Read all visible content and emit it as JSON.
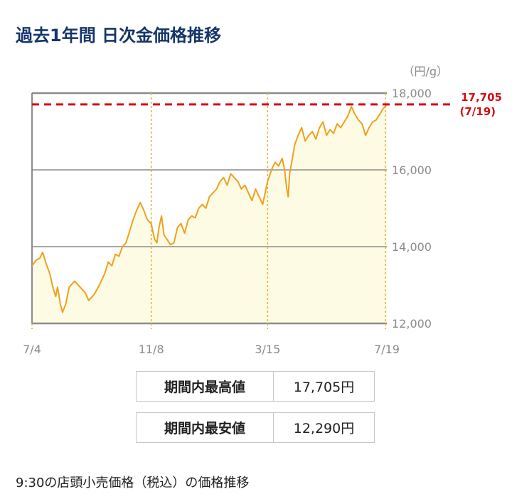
{
  "page": {
    "title": "過去1年間 日次金価格推移",
    "note": "9:30の店頭小売価格（税込）の価格推移"
  },
  "stats": {
    "high_label": "期間内最高値",
    "high_value": "17,705円",
    "low_label": "期間内最安値",
    "low_value": "12,290円"
  },
  "colors": {
    "title": "#15356b",
    "line": "#f0a01e",
    "fill": "#fdfbe3",
    "high_marker": "#d40d12",
    "gridline": "#8c8c8c",
    "date_gridline": "#ddb23a"
  },
  "chart_data": {
    "type": "area",
    "unit_label": "（円/g）",
    "ylim": [
      12000,
      18000
    ],
    "y_ticks": [
      "18,000",
      "16,000",
      "14,000",
      "12,000"
    ],
    "y_tick_values": [
      18000,
      16000,
      14000,
      12000
    ],
    "x_ticks": [
      "7/4",
      "11/8",
      "3/15",
      "7/19"
    ],
    "x_tick_positions": [
      0,
      0.336,
      0.664,
      1
    ],
    "grid": true,
    "high_marker": {
      "value": 17705,
      "label": "17,705",
      "date_label": "(7/19)"
    },
    "series": [
      {
        "points": [
          [
            0.0,
            13500
          ],
          [
            0.012,
            13650
          ],
          [
            0.022,
            13700
          ],
          [
            0.03,
            13850
          ],
          [
            0.04,
            13550
          ],
          [
            0.05,
            13300
          ],
          [
            0.06,
            12900
          ],
          [
            0.067,
            12700
          ],
          [
            0.072,
            12950
          ],
          [
            0.08,
            12500
          ],
          [
            0.086,
            12290
          ],
          [
            0.095,
            12500
          ],
          [
            0.105,
            12950
          ],
          [
            0.12,
            13100
          ],
          [
            0.135,
            12950
          ],
          [
            0.15,
            12800
          ],
          [
            0.16,
            12600
          ],
          [
            0.175,
            12750
          ],
          [
            0.19,
            13000
          ],
          [
            0.205,
            13300
          ],
          [
            0.215,
            13600
          ],
          [
            0.225,
            13500
          ],
          [
            0.235,
            13800
          ],
          [
            0.245,
            13750
          ],
          [
            0.255,
            14000
          ],
          [
            0.265,
            14100
          ],
          [
            0.275,
            14400
          ],
          [
            0.285,
            14700
          ],
          [
            0.295,
            14950
          ],
          [
            0.305,
            15150
          ],
          [
            0.315,
            14950
          ],
          [
            0.325,
            14700
          ],
          [
            0.336,
            14600
          ],
          [
            0.345,
            14200
          ],
          [
            0.352,
            14100
          ],
          [
            0.358,
            14500
          ],
          [
            0.365,
            14800
          ],
          [
            0.372,
            14300
          ],
          [
            0.38,
            14200
          ],
          [
            0.39,
            14050
          ],
          [
            0.4,
            14100
          ],
          [
            0.41,
            14500
          ],
          [
            0.42,
            14600
          ],
          [
            0.43,
            14350
          ],
          [
            0.44,
            14700
          ],
          [
            0.45,
            14800
          ],
          [
            0.46,
            14750
          ],
          [
            0.47,
            15000
          ],
          [
            0.48,
            15100
          ],
          [
            0.49,
            15000
          ],
          [
            0.5,
            15300
          ],
          [
            0.51,
            15400
          ],
          [
            0.52,
            15500
          ],
          [
            0.53,
            15700
          ],
          [
            0.54,
            15800
          ],
          [
            0.55,
            15600
          ],
          [
            0.56,
            15900
          ],
          [
            0.57,
            15800
          ],
          [
            0.58,
            15700
          ],
          [
            0.59,
            15500
          ],
          [
            0.6,
            15600
          ],
          [
            0.61,
            15400
          ],
          [
            0.62,
            15200
          ],
          [
            0.63,
            15500
          ],
          [
            0.64,
            15300
          ],
          [
            0.65,
            15100
          ],
          [
            0.664,
            15700
          ],
          [
            0.675,
            16000
          ],
          [
            0.685,
            16200
          ],
          [
            0.695,
            16100
          ],
          [
            0.705,
            16300
          ],
          [
            0.712,
            16000
          ],
          [
            0.718,
            15500
          ],
          [
            0.722,
            15300
          ],
          [
            0.726,
            15900
          ],
          [
            0.732,
            16200
          ],
          [
            0.74,
            16650
          ],
          [
            0.75,
            16900
          ],
          [
            0.76,
            17100
          ],
          [
            0.77,
            16750
          ],
          [
            0.78,
            16900
          ],
          [
            0.79,
            17000
          ],
          [
            0.8,
            16800
          ],
          [
            0.81,
            17100
          ],
          [
            0.82,
            17250
          ],
          [
            0.83,
            16900
          ],
          [
            0.84,
            17050
          ],
          [
            0.85,
            16950
          ],
          [
            0.86,
            17200
          ],
          [
            0.87,
            17100
          ],
          [
            0.88,
            17250
          ],
          [
            0.89,
            17400
          ],
          [
            0.9,
            17650
          ],
          [
            0.91,
            17450
          ],
          [
            0.92,
            17300
          ],
          [
            0.93,
            17200
          ],
          [
            0.94,
            16900
          ],
          [
            0.95,
            17100
          ],
          [
            0.96,
            17250
          ],
          [
            0.97,
            17300
          ],
          [
            0.98,
            17450
          ],
          [
            0.99,
            17600
          ],
          [
            1.0,
            17705
          ]
        ]
      }
    ]
  }
}
